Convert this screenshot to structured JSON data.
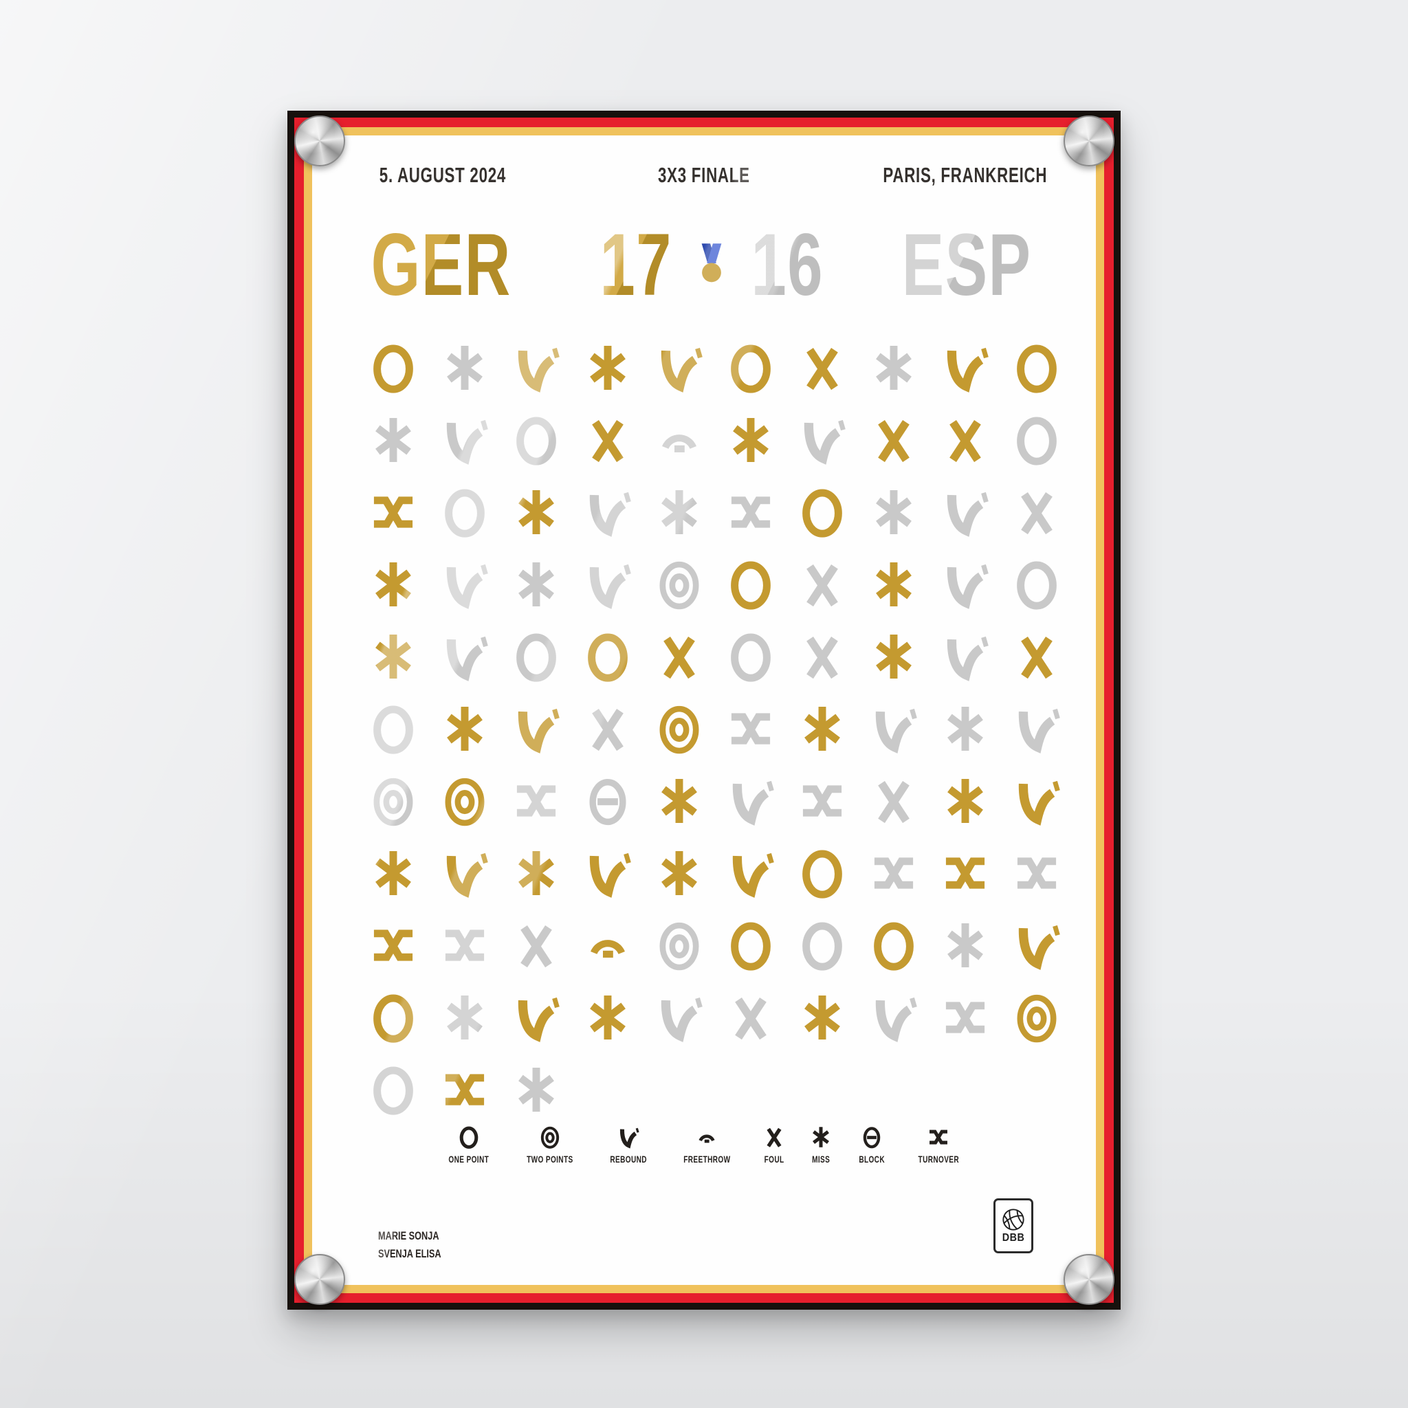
{
  "poster": {
    "header": {
      "date": "5. AUGUST 2024",
      "title": "3X3 FINALE",
      "location": "PARIS, FRANKREICH"
    },
    "scoreboard": {
      "home_team": "GER",
      "home_score": "17",
      "away_score": "16",
      "away_team": "ESP",
      "medal_icon": "gold-medal"
    },
    "credits": {
      "line1": "MARIE SONJA",
      "line2": "SVENJA ELISA"
    },
    "logo_label": "DBB",
    "frame_colors": {
      "outer_black": "#17110d",
      "red": "#e61f2d",
      "gold": "#f0c25c"
    }
  },
  "chart_data": {
    "type": "table",
    "title": "3X3 FINALE — GER 17 : 16 ESP — 5. AUGUST 2024, PARIS, FRANKREICH",
    "description": "Chronological grid of game events, read left-to-right top-to-bottom; gold = GER, silver = ESP",
    "teams": [
      {
        "code": "GER",
        "score": 17,
        "color": "#c49a30"
      },
      {
        "code": "ESP",
        "score": 16,
        "color": "#c9c9c9"
      }
    ],
    "legend": [
      {
        "key": "p1",
        "symbol": "one-point",
        "label": "ONE POINT"
      },
      {
        "key": "p2",
        "symbol": "two-points",
        "label": "TWO POINTS"
      },
      {
        "key": "rb",
        "symbol": "rebound",
        "label": "REBOUND"
      },
      {
        "key": "ft",
        "symbol": "freethrow",
        "label": "FREETHROW"
      },
      {
        "key": "fl",
        "symbol": "foul",
        "label": "FOUL"
      },
      {
        "key": "ms",
        "symbol": "miss",
        "label": "MISS"
      },
      {
        "key": "bk",
        "symbol": "block",
        "label": "BLOCK"
      },
      {
        "key": "to",
        "symbol": "turnover",
        "label": "TURNOVER"
      }
    ],
    "rows": [
      [
        "p1G",
        "msS",
        "rbG",
        "msG",
        "rbG",
        "p1G",
        "flG",
        "msS",
        "rbG",
        "p1G"
      ],
      [
        "msS",
        "rbS",
        "p1S",
        "flG",
        "ftS",
        "msG",
        "rbS",
        "flG",
        "flG",
        "p1S"
      ],
      [
        "toG",
        "p1S",
        "msG",
        "rbS",
        "msS",
        "toS",
        "p1G",
        "msS",
        "rbS",
        "flS"
      ],
      [
        "msG",
        "rbS",
        "msS",
        "rbS",
        "p2S",
        "p1G",
        "flS",
        "msG",
        "rbS",
        "p1S"
      ],
      [
        "msG",
        "rbS",
        "p1S",
        "p1G",
        "flG",
        "p1S",
        "flS",
        "msG",
        "rbS",
        "flG"
      ],
      [
        "p1S",
        "msG",
        "rbG",
        "flS",
        "p2G",
        "toS",
        "msG",
        "rbS",
        "msS",
        "rbS"
      ],
      [
        "p2S",
        "p2G",
        "toS",
        "bkS",
        "msG",
        "rbS",
        "toS",
        "flS",
        "msG",
        "rbG"
      ],
      [
        "msG",
        "rbG",
        "msG",
        "rbG",
        "msG",
        "rbG",
        "p1G",
        "toS",
        "toG",
        "toS"
      ],
      [
        "toG",
        "toS",
        "flS",
        "ftG",
        "p2S",
        "p1G",
        "p1S",
        "p1G",
        "msS",
        "rbG"
      ],
      [
        "p1G",
        "msS",
        "rbG",
        "msG",
        "rbS",
        "flS",
        "msG",
        "rbS",
        "toS",
        "p2G"
      ],
      [
        "p1S",
        "toG",
        "msS"
      ]
    ]
  }
}
